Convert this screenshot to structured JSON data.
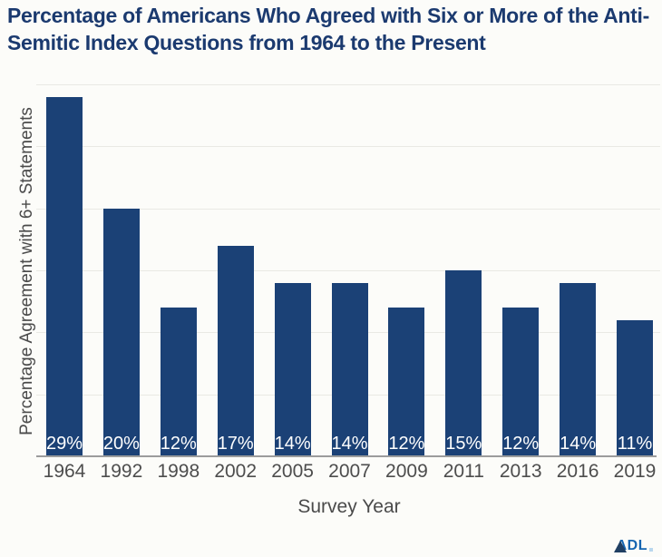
{
  "chart_data": {
    "type": "bar",
    "title": "Percentage of Americans Who Agreed with Six or More of the Anti-Semitic Index Questions from 1964 to the Present",
    "categories": [
      "1964",
      "1992",
      "1998",
      "2002",
      "2005",
      "2007",
      "2009",
      "2011",
      "2013",
      "2016",
      "2019"
    ],
    "values": [
      29,
      20,
      12,
      17,
      14,
      14,
      12,
      15,
      12,
      14,
      11
    ],
    "value_labels": [
      "29%",
      "20%",
      "12%",
      "17%",
      "14%",
      "14%",
      "12%",
      "15%",
      "12%",
      "14%",
      "11%"
    ],
    "xlabel": "Survey Year",
    "ylabel": "Percentage Agreement with 6+ Statements",
    "ylim": [
      0,
      30
    ],
    "gridline_step": 5,
    "grid": true,
    "legend": "none",
    "bar_color": "#1b4176",
    "bar_label_color": "#ffffff",
    "title_color": "#1b3a6f",
    "axis_text_color": "#4d4d4d",
    "gridline_color": "#e9e9e4",
    "axis_line_color": "#9c9c9c",
    "background_color": "#fcfcf9"
  },
  "branding": {
    "logo_text": "ADL"
  }
}
